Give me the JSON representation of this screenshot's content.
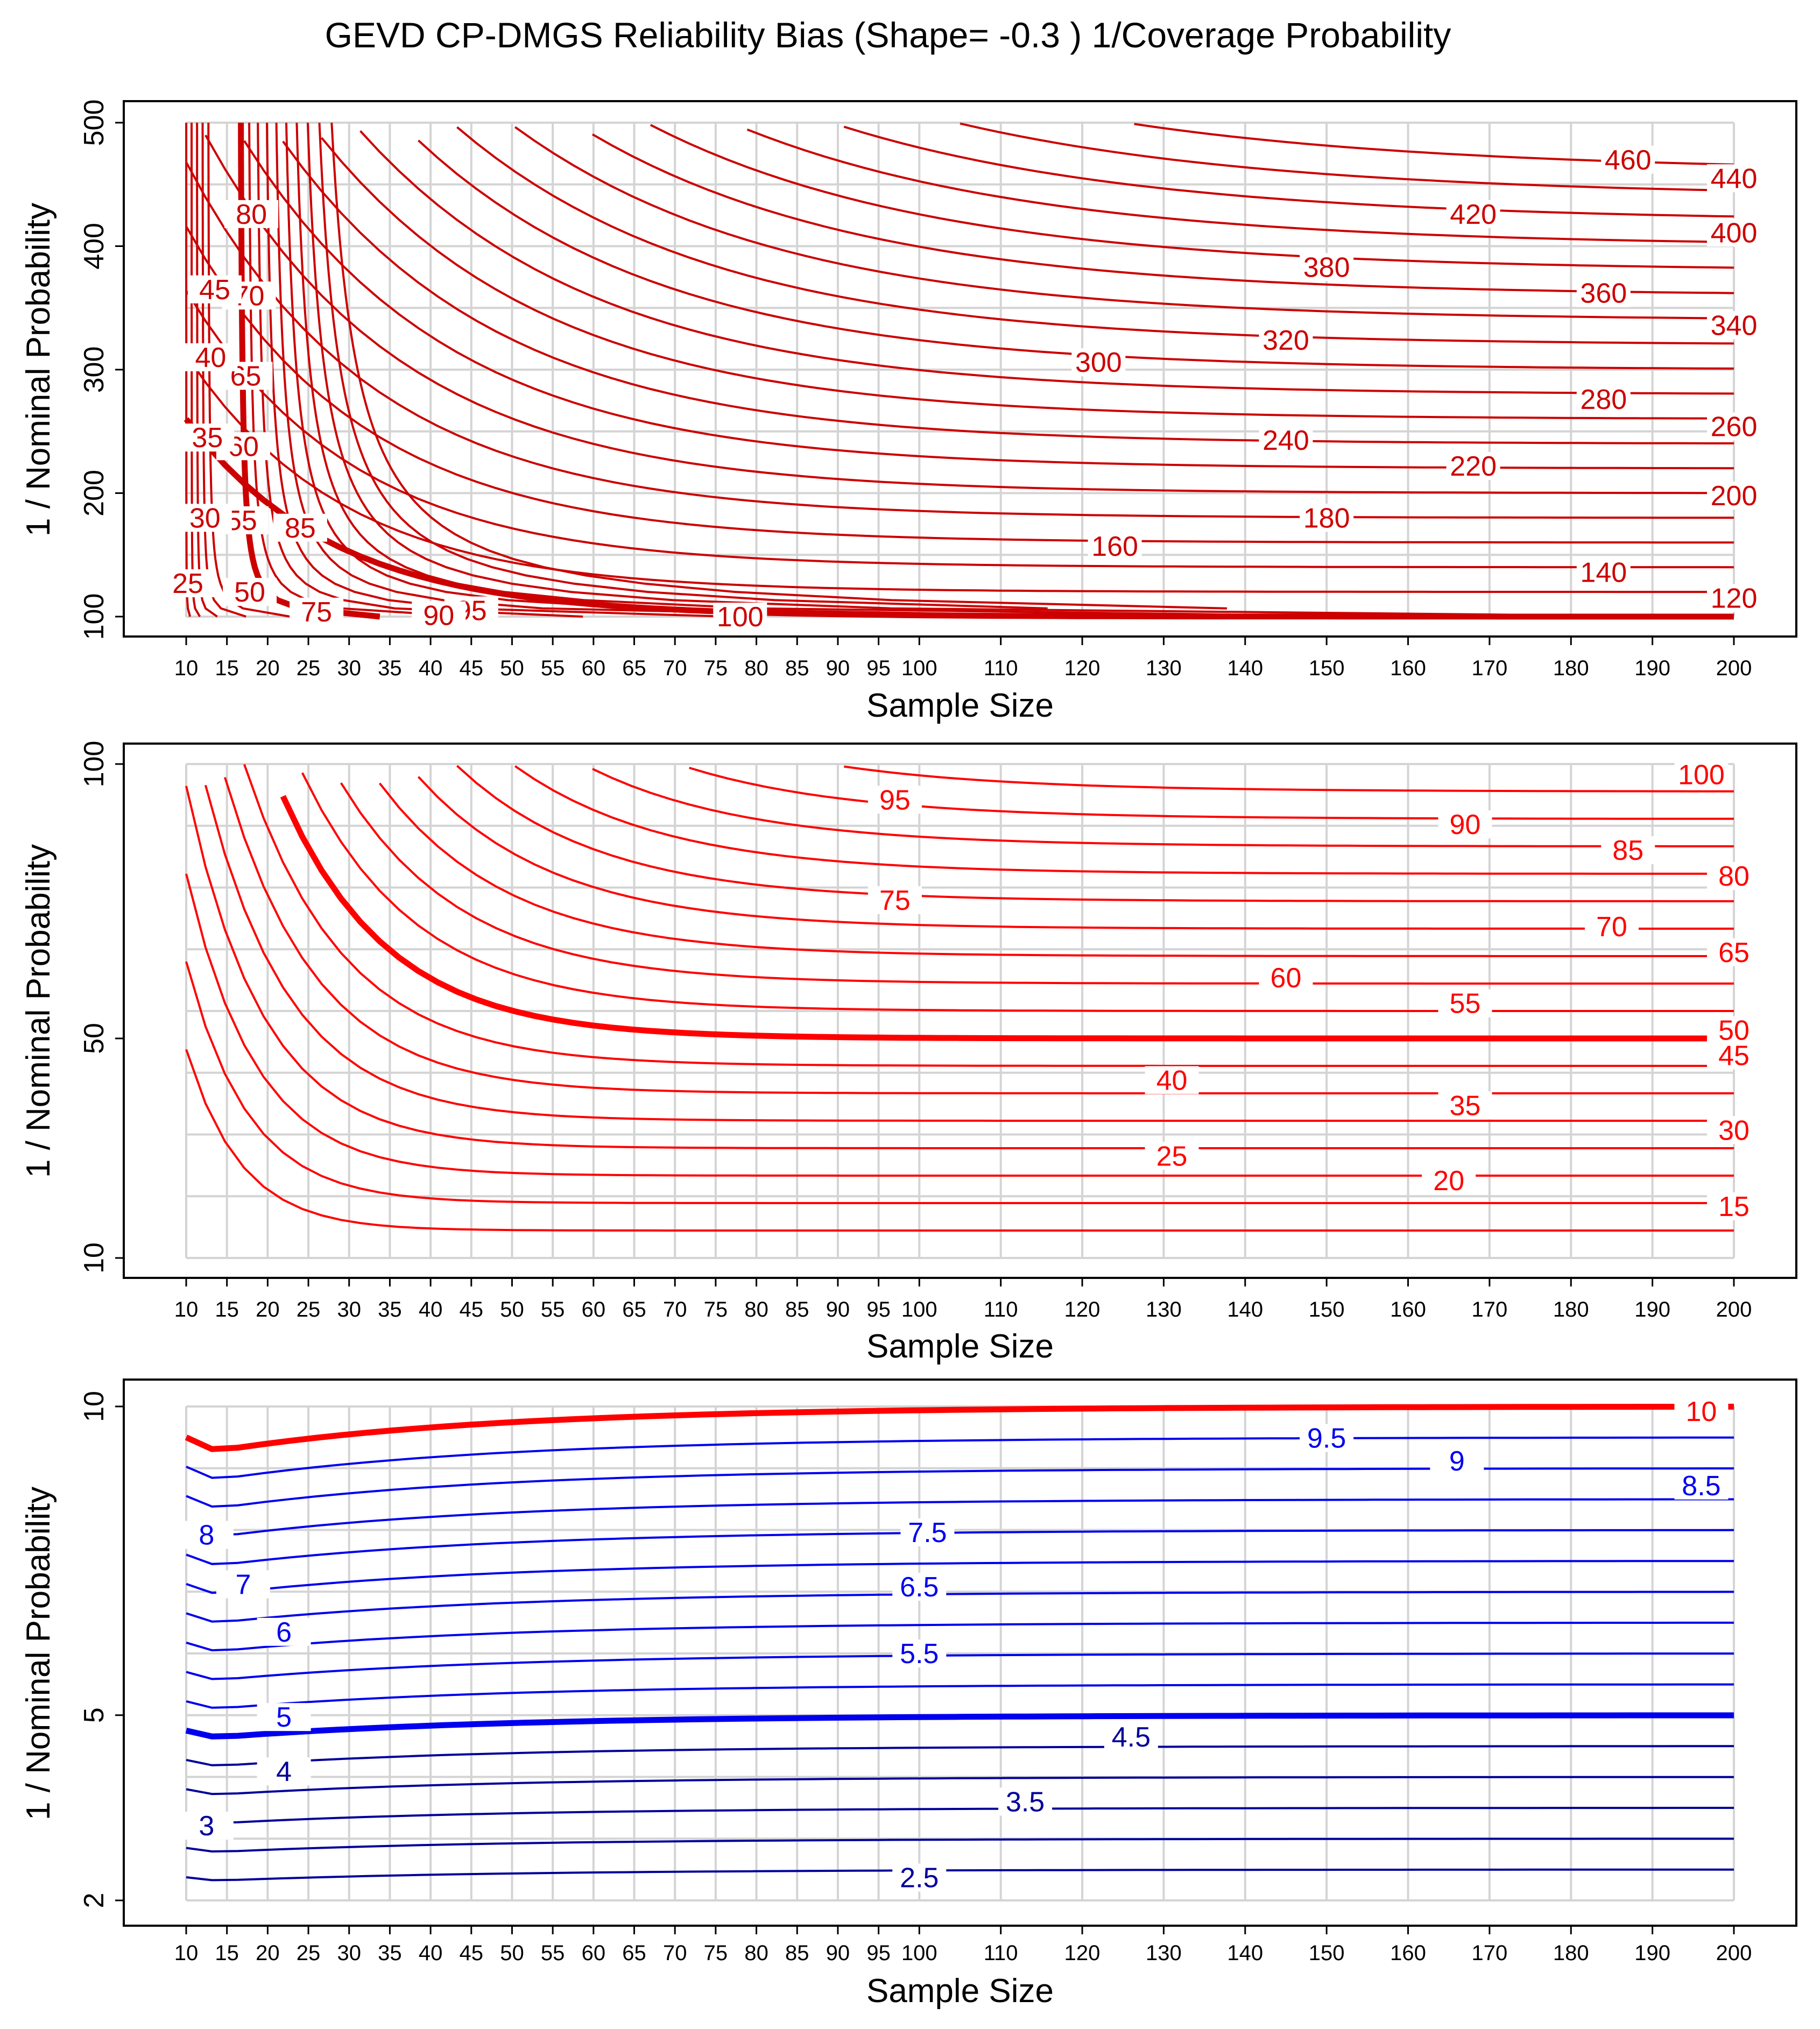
{
  "figure": {
    "title": "GEVD CP-DMGS Reliability Bias (Shape= -0.3 ) 1/Coverage Probability"
  },
  "chart_data": [
    {
      "type": "contour",
      "xlabel": "Sample Size",
      "ylabel": "1 / Nominal Probability",
      "x_ticks": [
        10,
        15,
        20,
        25,
        30,
        35,
        40,
        45,
        50,
        55,
        60,
        65,
        70,
        75,
        80,
        85,
        90,
        95,
        100,
        110,
        120,
        130,
        140,
        150,
        160,
        170,
        180,
        190,
        200
      ],
      "y_ticks": [
        100,
        200,
        300,
        400,
        500
      ],
      "ylim": [
        100,
        500
      ],
      "grid": true,
      "contour_levels": [
        25,
        30,
        35,
        40,
        45,
        50,
        55,
        60,
        65,
        70,
        75,
        80,
        85,
        90,
        95,
        100,
        120,
        140,
        160,
        180,
        200,
        220,
        240,
        260,
        280,
        300,
        320,
        340,
        360,
        380,
        400,
        420,
        440,
        460
      ],
      "highlighted_levels": [
        50,
        100
      ],
      "line_color": "#cc0000",
      "label_entries": [
        {
          "text": "460",
          "x": 187,
          "y": 470
        },
        {
          "text": "440",
          "x": 200,
          "y": 455
        },
        {
          "text": "420",
          "x": 168,
          "y": 426
        },
        {
          "text": "400",
          "x": 200,
          "y": 411
        },
        {
          "text": "380",
          "x": 150,
          "y": 383
        },
        {
          "text": "360",
          "x": 184,
          "y": 362
        },
        {
          "text": "340",
          "x": 200,
          "y": 336
        },
        {
          "text": "320",
          "x": 145,
          "y": 324
        },
        {
          "text": "300",
          "x": 122,
          "y": 306
        },
        {
          "text": "280",
          "x": 184,
          "y": 276
        },
        {
          "text": "260",
          "x": 200,
          "y": 254
        },
        {
          "text": "240",
          "x": 145,
          "y": 243
        },
        {
          "text": "220",
          "x": 168,
          "y": 222
        },
        {
          "text": "200",
          "x": 200,
          "y": 198
        },
        {
          "text": "180",
          "x": 150,
          "y": 180
        },
        {
          "text": "160",
          "x": 124,
          "y": 157
        },
        {
          "text": "140",
          "x": 184,
          "y": 136
        },
        {
          "text": "120",
          "x": 200,
          "y": 115
        },
        {
          "text": "100",
          "x": 78,
          "y": 100
        },
        {
          "text": "95",
          "x": 45,
          "y": 105
        },
        {
          "text": "90",
          "x": 41,
          "y": 101
        },
        {
          "text": "85",
          "x": 24,
          "y": 172
        },
        {
          "text": "80",
          "x": 18,
          "y": 426
        },
        {
          "text": "75",
          "x": 26,
          "y": 104
        },
        {
          "text": "70",
          "x": 17.7,
          "y": 360
        },
        {
          "text": "65",
          "x": 17.3,
          "y": 295
        },
        {
          "text": "60",
          "x": 17,
          "y": 238
        },
        {
          "text": "55",
          "x": 16.8,
          "y": 178
        },
        {
          "text": "50",
          "x": 17.8,
          "y": 120
        },
        {
          "text": "45",
          "x": 13.5,
          "y": 365
        },
        {
          "text": "40",
          "x": 13,
          "y": 310
        },
        {
          "text": "35",
          "x": 12.6,
          "y": 245
        },
        {
          "text": "30",
          "x": 12.3,
          "y": 180
        },
        {
          "text": "25",
          "x": 10.2,
          "y": 127
        }
      ]
    },
    {
      "type": "contour",
      "xlabel": "Sample Size",
      "ylabel": "1 / Nominal Probability",
      "x_ticks": [
        10,
        15,
        20,
        25,
        30,
        35,
        40,
        45,
        50,
        55,
        60,
        65,
        70,
        75,
        80,
        85,
        90,
        95,
        100,
        110,
        120,
        130,
        140,
        150,
        160,
        170,
        180,
        190,
        200
      ],
      "y_ticks": [
        10,
        50,
        100
      ],
      "ylim": [
        10,
        100
      ],
      "grid": true,
      "contour_levels": [
        15,
        20,
        25,
        30,
        35,
        40,
        45,
        50,
        55,
        60,
        65,
        70,
        75,
        80,
        85,
        90,
        95,
        100
      ],
      "highlighted_levels": [
        50,
        100
      ],
      "line_color": "#ff0000",
      "label_entries": [
        {
          "text": "100",
          "x": 196,
          "y": 98.1
        },
        {
          "text": "95",
          "x": 97,
          "y": 93.5
        },
        {
          "text": "90",
          "x": 167,
          "y": 89
        },
        {
          "text": "85",
          "x": 187,
          "y": 84.3
        },
        {
          "text": "80",
          "x": 200,
          "y": 79.6
        },
        {
          "text": "75",
          "x": 97,
          "y": 75.2
        },
        {
          "text": "70",
          "x": 185,
          "y": 70.4
        },
        {
          "text": "65",
          "x": 200,
          "y": 65.7
        },
        {
          "text": "60",
          "x": 145,
          "y": 61.1
        },
        {
          "text": "55",
          "x": 167,
          "y": 56.4
        },
        {
          "text": "50",
          "x": 200,
          "y": 51.5
        },
        {
          "text": "45",
          "x": 200,
          "y": 46.9
        },
        {
          "text": "40",
          "x": 131,
          "y": 42.4
        },
        {
          "text": "35",
          "x": 167,
          "y": 37.8
        },
        {
          "text": "30",
          "x": 200,
          "y": 33.3
        },
        {
          "text": "25",
          "x": 131,
          "y": 28.6
        },
        {
          "text": "20",
          "x": 165,
          "y": 24.1
        },
        {
          "text": "15",
          "x": 200,
          "y": 19.4
        }
      ]
    },
    {
      "type": "contour",
      "xlabel": "Sample Size",
      "ylabel": "1 / Nominal Probability",
      "x_ticks": [
        10,
        15,
        20,
        25,
        30,
        35,
        40,
        45,
        50,
        55,
        60,
        65,
        70,
        75,
        80,
        85,
        90,
        95,
        100,
        110,
        120,
        130,
        140,
        150,
        160,
        170,
        180,
        190,
        200
      ],
      "y_ticks": [
        2,
        5,
        10
      ],
      "ylim": [
        2,
        10
      ],
      "grid": true,
      "contour_levels": [
        2.5,
        3,
        3.5,
        4,
        4.5,
        5,
        5.5,
        6,
        6.5,
        7,
        7.5,
        8,
        8.5,
        9,
        9.5,
        10
      ],
      "highlighted_levels": [
        5,
        10
      ],
      "colors": {
        "level_10": "#ff0000",
        "high": "#0000ee",
        "low": "#000099"
      },
      "label_entries": [
        {
          "text": "10",
          "x": 196,
          "y": 9.92
        },
        {
          "text": "9.5",
          "x": 150,
          "y": 9.49
        },
        {
          "text": "9",
          "x": 166,
          "y": 9.12
        },
        {
          "text": "8.5",
          "x": 196,
          "y": 8.72
        },
        {
          "text": "8",
          "x": 12.5,
          "y": 7.92
        },
        {
          "text": "7.5",
          "x": 101,
          "y": 7.96
        },
        {
          "text": "7",
          "x": 17,
          "y": 7.12
        },
        {
          "text": "6.5",
          "x": 100,
          "y": 7.08
        },
        {
          "text": "6",
          "x": 22,
          "y": 6.35
        },
        {
          "text": "5.5",
          "x": 100,
          "y": 6.0
        },
        {
          "text": "5",
          "x": 22,
          "y": 4.97
        },
        {
          "text": "4.5",
          "x": 126,
          "y": 4.65
        },
        {
          "text": "4",
          "x": 22,
          "y": 4.09
        },
        {
          "text": "3.5",
          "x": 113,
          "y": 3.6
        },
        {
          "text": "3",
          "x": 12.5,
          "y": 3.21
        },
        {
          "text": "2.5",
          "x": 100,
          "y": 2.37
        }
      ]
    }
  ]
}
